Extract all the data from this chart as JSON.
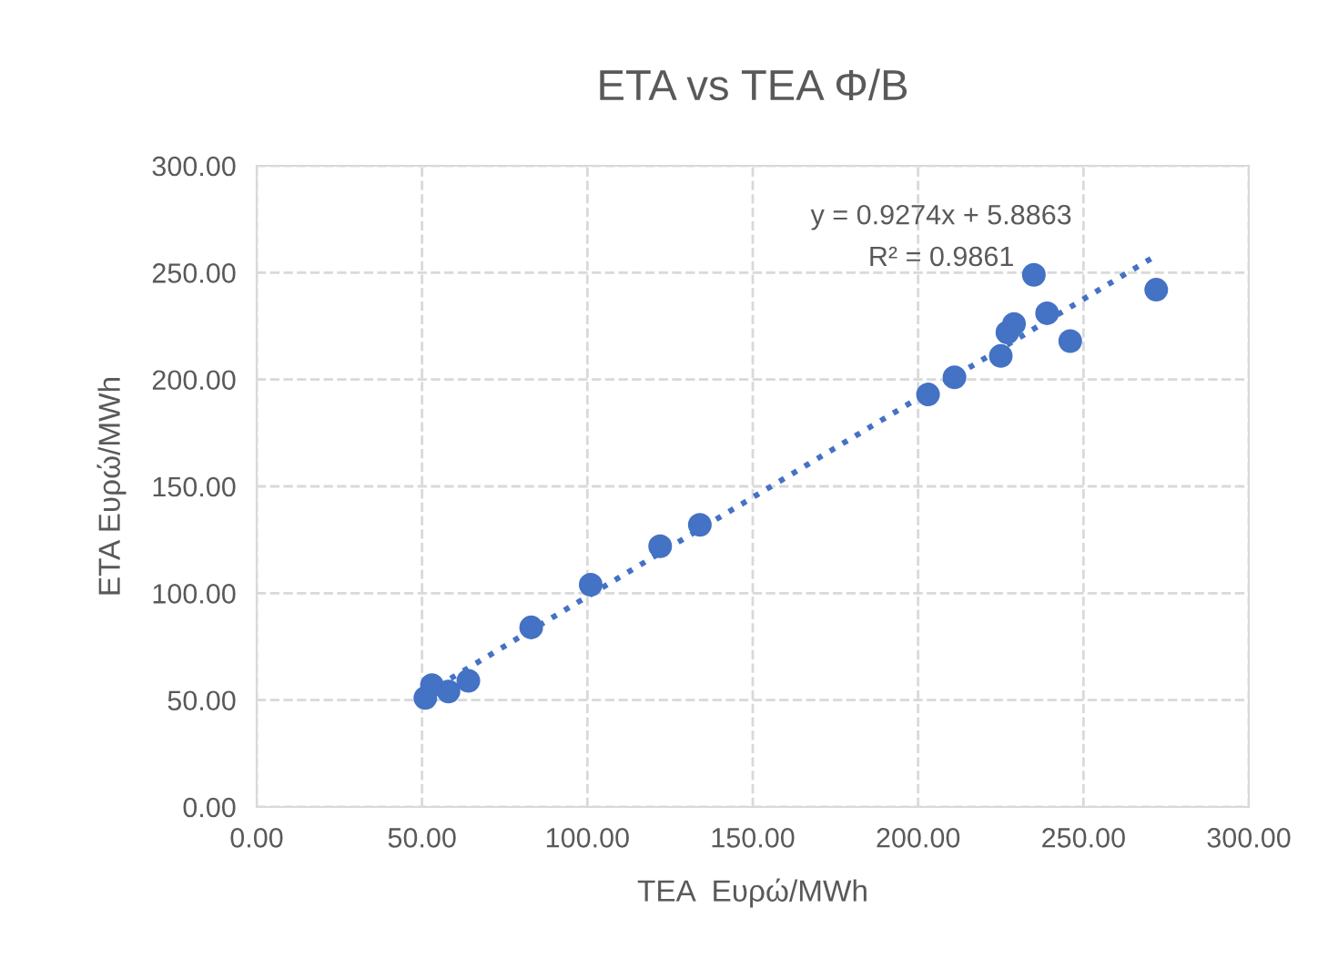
{
  "chart_data": {
    "type": "scatter",
    "title": "ETA vs TEA Φ/Β",
    "xlabel": "TEA  Ευρώ/MWh",
    "ylabel": "ETA Ευρώ/MWh",
    "series": [
      {
        "color": "#4472c4",
        "marker": "circle",
        "x": [
          51,
          53,
          58,
          64,
          83,
          101,
          122,
          134,
          203,
          211,
          225,
          227,
          229,
          235,
          239,
          246,
          272
        ],
        "values": [
          51,
          57,
          54,
          59,
          84,
          104,
          122,
          132,
          193,
          201,
          211,
          222,
          226,
          249,
          231,
          218,
          242
        ]
      },
      {
        "type": "line",
        "color": "#4472c4",
        "line_style": "dotted",
        "marker": "none",
        "x": [
          51,
          272
        ],
        "values": [
          53,
          258
        ]
      }
    ],
    "annotations": [
      "y = 0.9274x + 5.8863",
      "R² = 0.9861"
    ],
    "xlim": [
      0,
      300
    ],
    "ylim": [
      0,
      300
    ],
    "xticks": [
      {
        "value": 0,
        "label": "0.00"
      },
      {
        "value": 50,
        "label": "50.00"
      },
      {
        "value": 100,
        "label": "100.00"
      },
      {
        "value": 150,
        "label": "150.00"
      },
      {
        "value": 200,
        "label": "200.00"
      },
      {
        "value": 250,
        "label": "250.00"
      },
      {
        "value": 300,
        "label": "300.00"
      }
    ],
    "yticks": [
      {
        "value": 0,
        "label": "0.00"
      },
      {
        "value": 50,
        "label": "50.00"
      },
      {
        "value": 100,
        "label": "100.00"
      },
      {
        "value": 150,
        "label": "150.00"
      },
      {
        "value": 200,
        "label": "200.00"
      },
      {
        "value": 250,
        "label": "250.00"
      },
      {
        "value": 300,
        "label": "300.00"
      }
    ],
    "grid": true
  }
}
